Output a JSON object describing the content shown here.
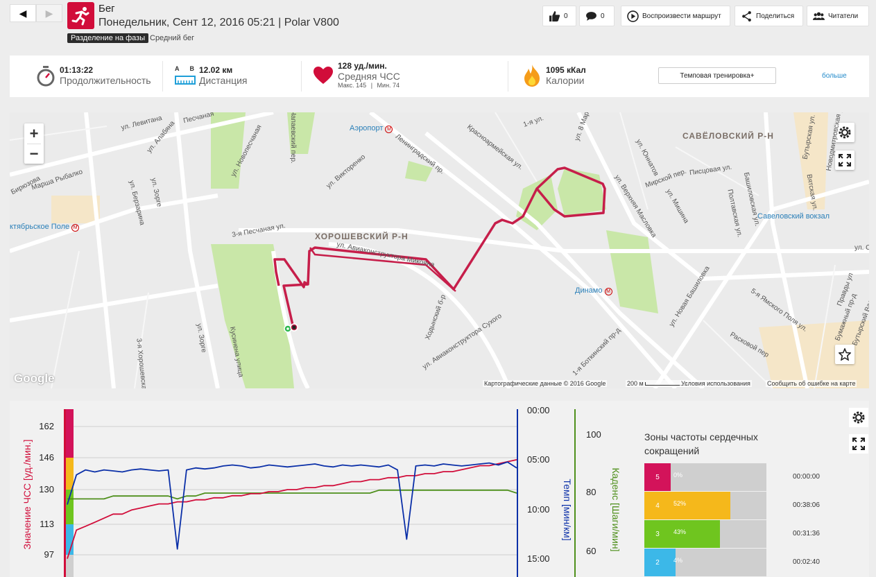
{
  "header": {
    "sport": "Бег",
    "session": "Понедельник, Сент 12, 2016 05:21 | Polar V800",
    "phase_badge": "Разделение на фазы",
    "avg_run": "Средний бег",
    "buttons": {
      "likes": "0",
      "comments": "0",
      "replay": "Воспроизвести маршрут",
      "share": "Поделиться",
      "readers": "Читатели"
    }
  },
  "summary": {
    "duration": {
      "value": "01:13:22",
      "label": "Продолжительность"
    },
    "distance": {
      "a": "A",
      "b": "B",
      "value": "12.02 км",
      "label": "Дистанция"
    },
    "hr": {
      "value": "128 уд./мин.",
      "label": "Средняя ЧСС",
      "max": "Макс. 145",
      "sep": "|",
      "min": "Мин. 74"
    },
    "calories": {
      "value": "1095 кКал",
      "label": "Калории"
    },
    "tempo_button": "Темповая тренировка+",
    "more": "больше"
  },
  "map": {
    "zoom_in": "+",
    "zoom_out": "−",
    "districts": [
      "ХОРОШЕВСКИЙ Р-Н",
      "САВЁЛОВСКИЙ Р-Н"
    ],
    "pois": [
      "Аэропорт",
      "Динамо",
      "Савеловский вокзал",
      "ктябрьское Поле"
    ],
    "streets": [
      "ул. Левитана",
      "Песчаная",
      "ул. Алабяна",
      "ул. Новопесчаная",
      "Чапаевский пер.",
      "ул. Викторенко",
      "Ленинградский пр.",
      "Красноармейская ул.",
      "1-я ул.",
      "ул. 8 Марта",
      "ул. Юннатов",
      "Мирской пер.",
      "Писцовая ул.",
      "Бутырская ул.",
      "Новодмитровская ул.",
      "Вятская ул.",
      "Башиловская ул.",
      "Полтавская ул.",
      "Марша Рыбалко",
      "Бирюзова",
      "ул. Берзарина",
      "ул. Зорге",
      "3-я Песчаная ул.",
      "ул. Авиаконструктора Микояна",
      "Ходынский б-р",
      "ул. Авиаконструктора Сухого",
      "ул. Верхняя Масловка",
      "ул. Мишина",
      "ул. Новая Башиловка",
      "Кусинена улица",
      "3-я Хорошевская",
      "ул. Зорге",
      "5-я Ямского Поля ул.",
      "Правды ул",
      "Бумажный пр-д",
      "Бутырский Вал ул.",
      "Расковой пер",
      "1-я Боткинский пр-д",
      "ул. С"
    ],
    "footer": {
      "copyright": "Картографические данные © 2016 Google",
      "scale": "200 м",
      "terms": "Условия использования",
      "report": "Сообщить об ошибке на карте"
    },
    "google": "Google"
  },
  "chart_data": {
    "type": "line",
    "title": "",
    "y_left_label": "Значение ЧСС [уд./мин.]",
    "y_left_ticks": [
      162,
      146,
      130,
      113,
      97
    ],
    "y_pace_label": "Темп [мин/км]",
    "y_pace_ticks": [
      "00:00",
      "05:00",
      "10:00",
      "15:00"
    ],
    "y_cadence_label": "Каденс [Шаги/мин]",
    "y_cadence_ticks": [
      100,
      80,
      60
    ],
    "series": [
      {
        "name": "Значение ЧСС [уд./мин.]",
        "color": "#d10d3a",
        "values": [
          95,
          110,
          112,
          114,
          116,
          118,
          118,
          120,
          121,
          122,
          123,
          123,
          124,
          124,
          125,
          125,
          126,
          126,
          127,
          127,
          128,
          128,
          129,
          129,
          130,
          130,
          131,
          131,
          132,
          132,
          133,
          134,
          134,
          135,
          135,
          136,
          136,
          137,
          137,
          138,
          138,
          139,
          139,
          140,
          141,
          142,
          142,
          143,
          144,
          145
        ]
      },
      {
        "name": "Темп [мин/км]",
        "color": "#0a2fa8",
        "values": [
          9.5,
          6.5,
          6.0,
          6.2,
          6.0,
          6.1,
          6.2,
          6.0,
          5.9,
          6.0,
          6.1,
          6.0,
          14.0,
          6.0,
          5.8,
          5.9,
          5.8,
          5.6,
          5.5,
          5.6,
          5.8,
          5.7,
          5.5,
          5.6,
          5.7,
          5.6,
          5.5,
          5.4,
          5.6,
          5.7,
          5.5,
          5.6,
          5.5,
          5.6,
          5.7,
          5.5,
          6.0,
          13.0,
          5.6,
          5.5,
          5.6,
          5.4,
          5.5,
          5.6,
          5.5,
          5.4,
          5.3,
          5.5,
          5.2,
          5.8
        ]
      },
      {
        "name": "Каденс [Шаги/мин]",
        "color": "#4e8f1b",
        "values": [
          78,
          78,
          78,
          78,
          78,
          79,
          79,
          79,
          79,
          79,
          79,
          79,
          78,
          79,
          79,
          80,
          80,
          80,
          80,
          80,
          80,
          80,
          80,
          80,
          80,
          80,
          80,
          80,
          80,
          80,
          80,
          80,
          80,
          80,
          81,
          81,
          81,
          81,
          81,
          81,
          81,
          81,
          81,
          81,
          81,
          81,
          81,
          81,
          81,
          80
        ]
      }
    ],
    "hr_range": [
      90,
      170
    ],
    "pace_range": [
      0,
      18
    ],
    "cadence_range": [
      55,
      105
    ],
    "zones": [
      {
        "zone": "5",
        "color": "#d3135a",
        "pct": 0,
        "pct_label": "0%",
        "time": "00:00:00"
      },
      {
        "zone": "4",
        "color": "#f5b81b",
        "pct": 52,
        "pct_label": "52%",
        "time": "00:38:06"
      },
      {
        "zone": "3",
        "color": "#6fc51f",
        "pct": 43,
        "pct_label": "43%",
        "time": "00:31:36"
      },
      {
        "zone": "2",
        "color": "#3cb8e8",
        "pct": 4,
        "pct_label": "4%",
        "time": "00:02:40"
      }
    ],
    "zones_title": "Зоны частоты сердечных сокращений"
  }
}
